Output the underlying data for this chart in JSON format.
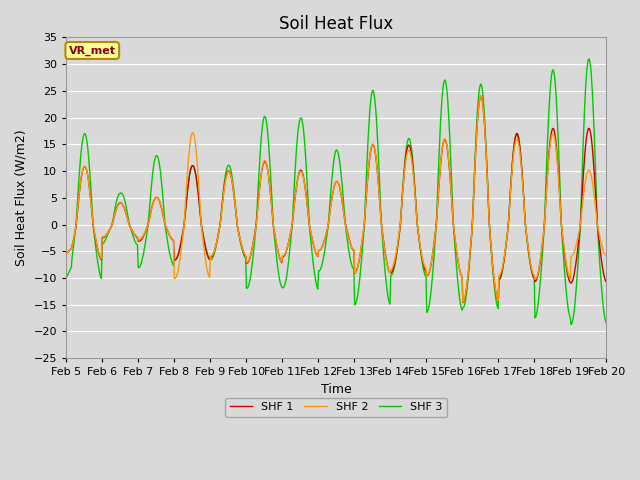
{
  "title": "Soil Heat Flux",
  "xlabel": "Time",
  "ylabel": "Soil Heat Flux (W/m2)",
  "ylim": [
    -25,
    35
  ],
  "yticks": [
    -25,
    -20,
    -15,
    -10,
    -5,
    0,
    5,
    10,
    15,
    20,
    25,
    30,
    35
  ],
  "date_labels": [
    "Feb 5",
    "Feb 6",
    "Feb 7",
    "Feb 8",
    "Feb 9",
    "Feb 10",
    "Feb 11",
    "Feb 12",
    "Feb 13",
    "Feb 14",
    "Feb 15",
    "Feb 16",
    "Feb 17",
    "Feb 18",
    "Feb 19",
    "Feb 20"
  ],
  "legend_labels": [
    "SHF 1",
    "SHF 2",
    "SHF 3"
  ],
  "colors": [
    "#cc0000",
    "#ff9900",
    "#00cc00"
  ],
  "linewidths": [
    1.0,
    1.0,
    1.0
  ],
  "background_color": "#d9d9d9",
  "axes_bg_color": "#d9d9d9",
  "annotation_text": "VR_met",
  "annotation_color": "#8b0000",
  "annotation_bg": "#ffff99",
  "annotation_border": "#b8860b",
  "title_fontsize": 12,
  "label_fontsize": 9,
  "tick_fontsize": 8,
  "grid_color": "#ffffff",
  "n_days": 15,
  "pts_per_day": 48,
  "amps_shf1": [
    11,
    4,
    5,
    11,
    10,
    12,
    10,
    8,
    15,
    15,
    16,
    24,
    17,
    18,
    18
  ],
  "amps_shf2": [
    11,
    4,
    5,
    17,
    10,
    12,
    10,
    8,
    15,
    14,
    16,
    24,
    16,
    17,
    10
  ],
  "amps_shf3": [
    17,
    6,
    13,
    11,
    11,
    20,
    20,
    14,
    25,
    16,
    27,
    26,
    17,
    29,
    31
  ]
}
